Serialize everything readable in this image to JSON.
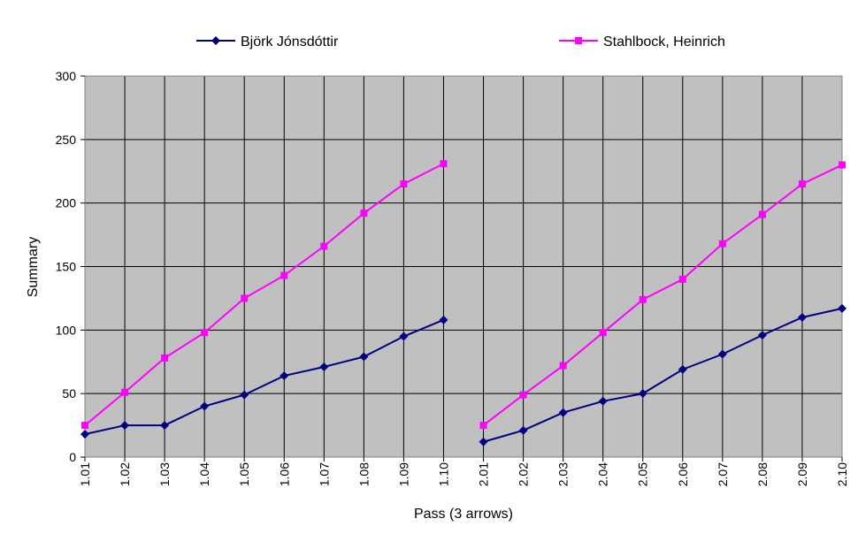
{
  "chart_data": {
    "type": "line",
    "xlabel": "Pass (3 arrows)",
    "ylabel": "Summary",
    "ylim": [
      0,
      300
    ],
    "yticks": [
      0,
      50,
      100,
      150,
      200,
      250,
      300
    ],
    "grid": true,
    "legend_position": "top",
    "plot_background": "#c0c0c0",
    "categories": [
      "1.01",
      "1.02",
      "1.03",
      "1.04",
      "1.05",
      "1.06",
      "1.07",
      "1.08",
      "1.09",
      "1.10",
      "2.01",
      "2.02",
      "2.03",
      "2.04",
      "2.05",
      "2.06",
      "2.07",
      "2.08",
      "2.09",
      "2.10"
    ],
    "series": [
      {
        "name": "Björk Jónsdóttir",
        "color": "#000080",
        "marker": "diamond",
        "values": [
          18,
          25,
          25,
          40,
          49,
          64,
          71,
          79,
          95,
          108,
          12,
          21,
          35,
          44,
          50,
          69,
          81,
          96,
          110,
          117
        ]
      },
      {
        "name": "Stahlbock, Heinrich",
        "color": "#ff00ff",
        "marker": "square",
        "values": [
          25,
          51,
          78,
          98,
          125,
          143,
          166,
          192,
          215,
          231,
          25,
          49,
          72,
          98,
          124,
          140,
          168,
          191,
          215,
          230
        ]
      }
    ],
    "segments": [
      [
        0,
        9
      ],
      [
        10,
        19
      ]
    ]
  }
}
